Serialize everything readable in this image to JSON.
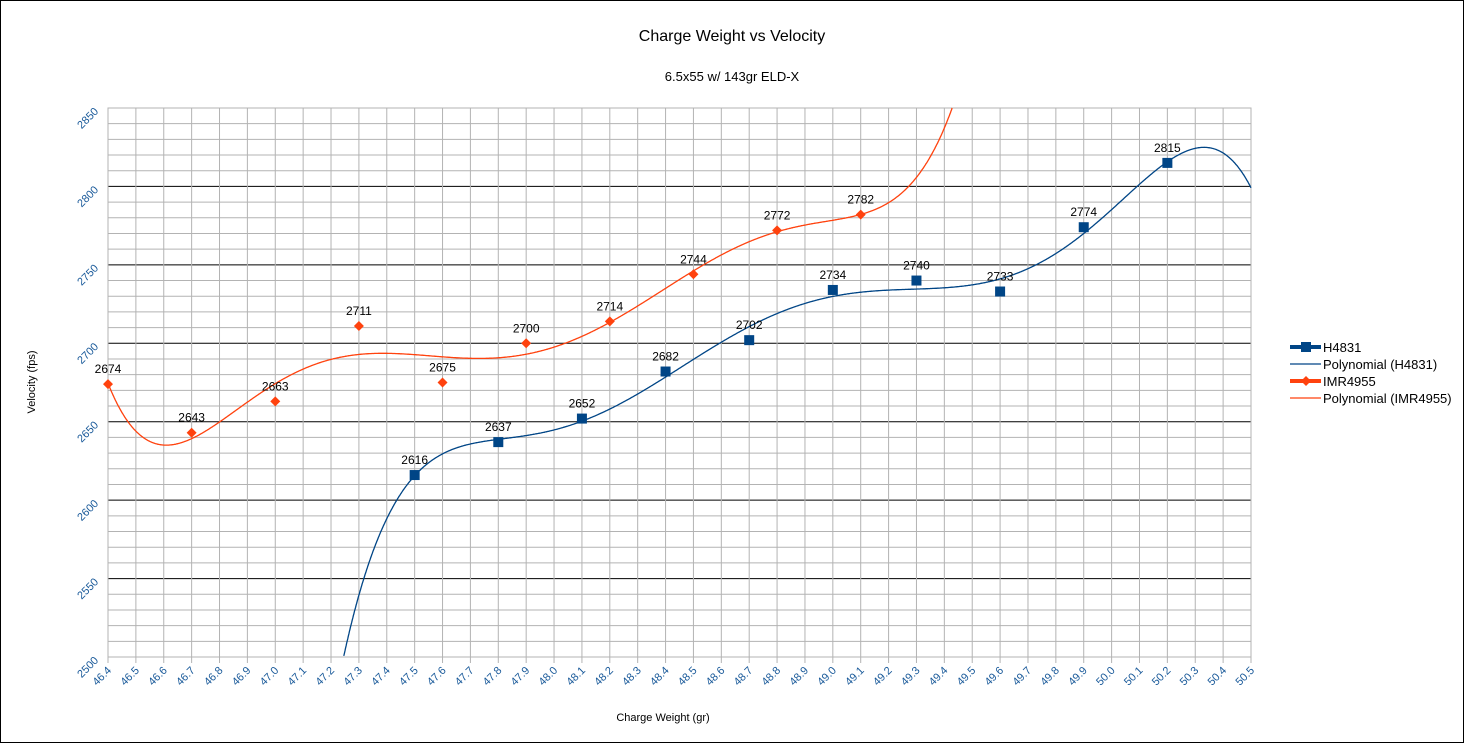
{
  "chart_data": {
    "type": "line",
    "title": "Charge Weight vs Velocity",
    "subtitle": "6.5x55 w/ 143gr ELD-X",
    "xlabel": "Charge Weight (gr)",
    "ylabel": "Velocity (fps)",
    "xlim": [
      46.4,
      50.5
    ],
    "ylim": [
      2500,
      2850
    ],
    "x_ticks": [
      "46.4",
      "46.5",
      "46.6",
      "46.7",
      "46.8",
      "46.9",
      "47.0",
      "47.1",
      "47.2",
      "47.3",
      "47.4",
      "47.5",
      "47.6",
      "47.7",
      "47.8",
      "47.9",
      "48.0",
      "48.1",
      "48.2",
      "48.3",
      "48.4",
      "48.5",
      "48.6",
      "48.7",
      "48.8",
      "48.9",
      "49.0",
      "49.1",
      "49.2",
      "49.3",
      "49.4",
      "49.5",
      "49.6",
      "49.7",
      "49.8",
      "49.9",
      "50.0",
      "50.1",
      "50.2",
      "50.3",
      "50.4",
      "50.5"
    ],
    "y_ticks": [
      "2500",
      "2550",
      "2600",
      "2650",
      "2700",
      "2750",
      "2800",
      "2850"
    ],
    "grid": true,
    "legend": "right",
    "series": [
      {
        "name": "H4831",
        "color": "#004586",
        "marker": "square",
        "x": [
          47.5,
          47.8,
          48.1,
          48.4,
          48.7,
          49.0,
          49.3,
          49.6,
          49.9,
          50.2
        ],
        "y": [
          2616,
          2637,
          2652,
          2682,
          2702,
          2734,
          2740,
          2733,
          2774,
          2815
        ]
      },
      {
        "name": "IMR4955",
        "color": "#ff420e",
        "marker": "diamond",
        "x": [
          46.4,
          46.7,
          47.0,
          47.3,
          47.6,
          47.9,
          48.2,
          48.5,
          48.8,
          49.1
        ],
        "y": [
          2674,
          2643,
          2663,
          2711,
          2675,
          2700,
          2714,
          2744,
          2772,
          2782
        ]
      }
    ],
    "trendlines": [
      {
        "name": "Polynomial (H4831)",
        "of": "H4831",
        "color": "#004586"
      },
      {
        "name": "Polynomial (IMR4955)",
        "of": "IMR4955",
        "color": "#ff420e"
      }
    ]
  }
}
